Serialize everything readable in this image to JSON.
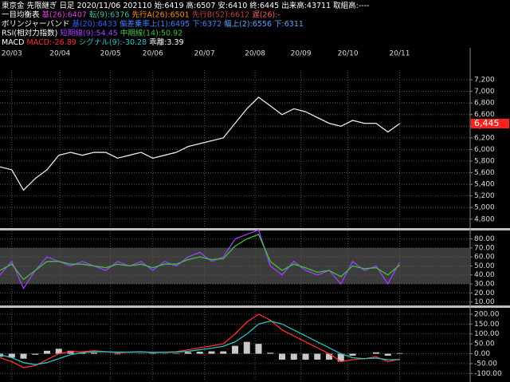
{
  "header": [
    [
      {
        "text": "東京金 先限継ぎ 日足 2020/11/06 202110 始:6419 高:6507 安:6410 終:6445 出来高:43711 取組高:----",
        "color": "#ffffff"
      }
    ],
    [
      {
        "text": "一目均衡表",
        "color": "#ffffff"
      },
      {
        "text": "基(26):6407",
        "color": "#e040e0"
      },
      {
        "text": "転(9):6376",
        "color": "#40c0a0"
      },
      {
        "text": "先行A(26):6501",
        "color": "#ff8c20"
      },
      {
        "text": "先行B(52):6612",
        "color": "#c04040"
      },
      {
        "text": "遅(26):-",
        "color": "#ff6060"
      }
    ],
    [
      {
        "text": "ボリンジャーバンド",
        "color": "#ffffff"
      },
      {
        "text": "基(20):6433",
        "color": "#3060ff"
      },
      {
        "text": "偏差乗率上(1):6495",
        "color": "#4080ff"
      },
      {
        "text": "下:6372",
        "color": "#4080ff"
      },
      {
        "text": "幅上(2):6556",
        "color": "#60a0ff"
      },
      {
        "text": "下:6311",
        "color": "#60a0ff"
      }
    ],
    [
      {
        "text": "RSI(相対力指数)",
        "color": "#ffffff"
      },
      {
        "text": "短期線(9):54.45",
        "color": "#a040ff"
      },
      {
        "text": "中期線(14):50.92",
        "color": "#40c040"
      }
    ],
    [
      {
        "text": "MACD",
        "color": "#ffffff"
      },
      {
        "text": "MACD:-26.89",
        "color": "#ff3030"
      },
      {
        "text": "シグナル(9):-30.28",
        "color": "#30c0c0"
      },
      {
        "text": "乖離:3.39",
        "color": "#ffffff"
      }
    ]
  ],
  "chart_data": [
    {
      "type": "line",
      "x": [
        0,
        1,
        2,
        3,
        4,
        5,
        6,
        7,
        8,
        9,
        10,
        11,
        12,
        13,
        14,
        15,
        16,
        17,
        18,
        19,
        20,
        21,
        22,
        23,
        24,
        25,
        26,
        27,
        28,
        29,
        30,
        31,
        32,
        33,
        34
      ],
      "xlim": [
        0,
        40
      ],
      "xticks": [
        {
          "value": 1,
          "label": "20/03"
        },
        {
          "value": 5.1,
          "label": "20/04"
        },
        {
          "value": 9.4,
          "label": "20/05"
        },
        {
          "value": 13,
          "label": "20/06"
        },
        {
          "value": 17.4,
          "label": "20/07"
        },
        {
          "value": 21.7,
          "label": "20/08"
        },
        {
          "value": 25.6,
          "label": "20/09"
        },
        {
          "value": 29.6,
          "label": "20/10"
        },
        {
          "value": 34,
          "label": "20/11"
        }
      ],
      "ylim": [
        4660,
        7365
      ],
      "yticks": [
        {
          "value": 4800,
          "label": "4,800"
        },
        {
          "value": 5000,
          "label": "5,000"
        },
        {
          "value": 5200,
          "label": "5,200"
        },
        {
          "value": 5400,
          "label": "5,400"
        },
        {
          "value": 5600,
          "label": "5,600"
        },
        {
          "value": 5800,
          "label": "5,800"
        },
        {
          "value": 6000,
          "label": "6,000"
        },
        {
          "value": 6200,
          "label": "6,200"
        },
        {
          "value": 6400,
          "label": "6,400"
        },
        {
          "value": 6600,
          "label": "6,600"
        },
        {
          "value": 6800,
          "label": "6,800"
        },
        {
          "value": 7000,
          "label": "7,000"
        },
        {
          "value": 7200,
          "label": "7,200"
        }
      ],
      "grid": true,
      "series": [
        {
          "name": "終値",
          "color": "#e8e8e8",
          "values": [
            5700,
            5650,
            5300,
            5500,
            5650,
            5900,
            5950,
            5900,
            5950,
            5950,
            5850,
            5900,
            5950,
            5850,
            5900,
            5950,
            6050,
            6100,
            6150,
            6200,
            6450,
            6700,
            6900,
            6750,
            6600,
            6700,
            6650,
            6550,
            6450,
            6400,
            6500,
            6450,
            6450,
            6300,
            6445
          ]
        }
      ],
      "price_tag": {
        "value": 6445,
        "label": "6,445",
        "color": "#ff2020"
      }
    },
    {
      "type": "line",
      "x": [
        0,
        1,
        2,
        3,
        4,
        5,
        6,
        7,
        8,
        9,
        10,
        11,
        12,
        13,
        14,
        15,
        16,
        17,
        18,
        19,
        20,
        21,
        22,
        23,
        24,
        25,
        26,
        27,
        28,
        29,
        30,
        31,
        32,
        33,
        34
      ],
      "xlim": [
        0,
        40
      ],
      "ylim": [
        7,
        88.5
      ],
      "yticks": [
        {
          "value": 10,
          "label": "10.00"
        },
        {
          "value": 20,
          "label": "20.00"
        },
        {
          "value": 30,
          "label": "30.00"
        },
        {
          "value": 40,
          "label": "40.00"
        },
        {
          "value": 50,
          "label": "50.00"
        },
        {
          "value": 60,
          "label": "60.00"
        },
        {
          "value": 70,
          "label": "70.00"
        },
        {
          "value": 80,
          "label": "80.00"
        }
      ],
      "grid": true,
      "shaded_range": [
        30,
        70
      ],
      "series": [
        {
          "name": "短期線",
          "color": "#a040ff",
          "values": [
            40,
            55,
            25,
            45,
            60,
            55,
            50,
            55,
            50,
            45,
            55,
            50,
            55,
            45,
            55,
            50,
            60,
            65,
            55,
            60,
            80,
            85,
            90,
            50,
            40,
            55,
            45,
            40,
            45,
            30,
            55,
            45,
            50,
            30,
            54
          ]
        },
        {
          "name": "中期線",
          "color": "#40c040",
          "values": [
            45,
            52,
            35,
            45,
            55,
            55,
            52,
            52,
            50,
            48,
            52,
            50,
            52,
            48,
            52,
            52,
            57,
            60,
            57,
            58,
            72,
            80,
            85,
            55,
            45,
            52,
            48,
            43,
            45,
            38,
            50,
            47,
            48,
            40,
            51
          ]
        }
      ]
    },
    {
      "type": "line",
      "x": [
        0,
        1,
        2,
        3,
        4,
        5,
        6,
        7,
        8,
        9,
        10,
        11,
        12,
        13,
        14,
        15,
        16,
        17,
        18,
        19,
        20,
        21,
        22,
        23,
        24,
        25,
        26,
        27,
        28,
        29,
        30,
        31,
        32,
        33,
        34
      ],
      "xlim": [
        0,
        40
      ],
      "ylim": [
        -139,
        224
      ],
      "yticks": [
        {
          "value": -100,
          "label": "-100.00"
        },
        {
          "value": -50,
          "label": "-50.00"
        },
        {
          "value": 0,
          "label": "0.00"
        },
        {
          "value": 50,
          "label": "50.00"
        },
        {
          "value": 100,
          "label": "100.00"
        },
        {
          "value": 150,
          "label": "150.00"
        },
        {
          "value": 200,
          "label": "200.00"
        }
      ],
      "grid": true,
      "histogram": {
        "color": "#c8c8c8",
        "values": [
          -15,
          -20,
          -25,
          -5,
          15,
          25,
          15,
          5,
          5,
          0,
          -3,
          0,
          1,
          -2,
          1,
          2,
          8,
          10,
          12,
          12,
          40,
          60,
          50,
          5,
          -30,
          -30,
          -30,
          -30,
          -30,
          -40,
          -10,
          0,
          7,
          -10,
          3
        ]
      },
      "series": [
        {
          "name": "MACD",
          "color": "#ff3030",
          "values": [
            -20,
            -40,
            -70,
            -60,
            -30,
            0,
            10,
            10,
            15,
            10,
            5,
            8,
            10,
            5,
            8,
            10,
            20,
            30,
            40,
            50,
            100,
            160,
            200,
            170,
            120,
            90,
            60,
            30,
            0,
            -40,
            -30,
            -25,
            -15,
            -40,
            -27
          ]
        },
        {
          "name": "シグナル",
          "color": "#30c0c0",
          "values": [
            -5,
            -20,
            -45,
            -55,
            -45,
            -25,
            -5,
            5,
            10,
            10,
            8,
            8,
            9,
            7,
            7,
            8,
            12,
            20,
            28,
            38,
            60,
            100,
            150,
            165,
            150,
            120,
            90,
            60,
            30,
            0,
            -20,
            -25,
            -22,
            -30,
            -30
          ]
        }
      ]
    }
  ]
}
